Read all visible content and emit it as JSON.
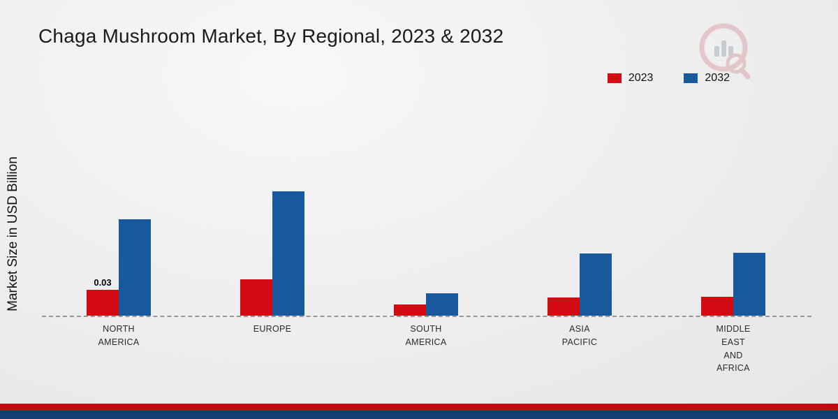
{
  "page": {
    "title": "Chaga Mushroom Market, By Regional, 2023 & 2032"
  },
  "colors": {
    "series_2023": "#d20a11",
    "series_2032": "#17599c",
    "bottom_stripe_red": "#c20b10",
    "bottom_stripe_navy": "#123e73",
    "baseline": "#979797"
  },
  "chart_data": {
    "type": "bar",
    "title": "Chaga Mushroom Market, By Regional, 2023 & 2032",
    "xlabel": "",
    "ylabel": "Market Size in USD Billion",
    "ylim": [
      0,
      0.15
    ],
    "grid": false,
    "legend_position": "top-right",
    "categories": [
      "NORTH AMERICA",
      "EUROPE",
      "SOUTH AMERICA",
      "ASIA PACIFIC",
      "MIDDLE EAST AND AFRICA"
    ],
    "category_lines": [
      [
        "NORTH",
        "AMERICA"
      ],
      [
        "EUROPE"
      ],
      [
        "SOUTH",
        "AMERICA"
      ],
      [
        "ASIA",
        "PACIFIC"
      ],
      [
        "MIDDLE",
        "EAST",
        "AND",
        "AFRICA"
      ]
    ],
    "series": [
      {
        "name": "2023",
        "color": "#d20a11",
        "values": [
          0.03,
          0.042,
          0.013,
          0.021,
          0.022
        ],
        "data_labels": [
          "0.03",
          "",
          "",
          "",
          ""
        ]
      },
      {
        "name": "2032",
        "color": "#17599c",
        "values": [
          0.112,
          0.144,
          0.026,
          0.072,
          0.073
        ],
        "data_labels": [
          "",
          "",
          "",
          "",
          ""
        ]
      }
    ]
  }
}
